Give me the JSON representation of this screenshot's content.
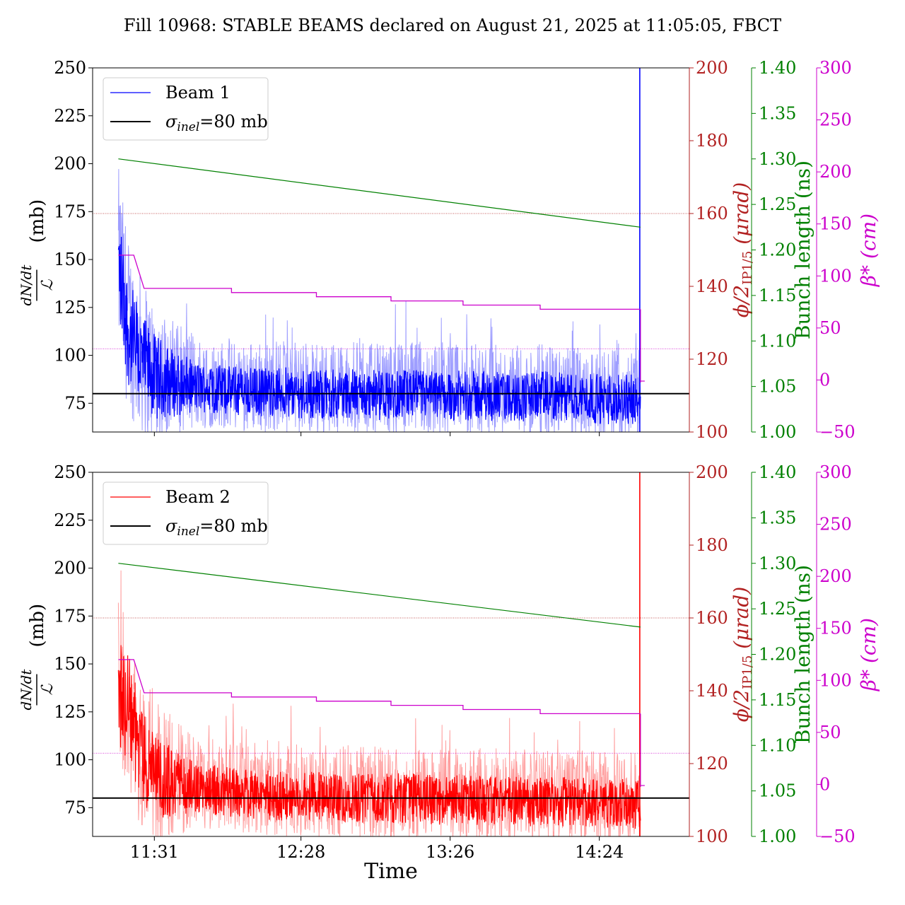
{
  "title": "Fill 10968: STABLE BEAMS declared on August 21, 2025 at 11:05:05, FBCT",
  "xlabel": "Time",
  "x_ticks": [
    "11:31",
    "12:28",
    "13:26",
    "14:24"
  ],
  "axes": {
    "left": {
      "label_frac_num": "dN/dt",
      "label_frac_den": "ℒ",
      "label_unit": "(mb)",
      "ticks": [
        "75",
        "100",
        "125",
        "150",
        "175",
        "200",
        "225",
        "250"
      ]
    },
    "phi": {
      "label": "ϕ/2",
      "label_sub": "IP1/5",
      "label_unit": " (μrad)",
      "color": "#b22222",
      "ticks": [
        "100",
        "120",
        "140",
        "160",
        "180",
        "200"
      ]
    },
    "bunch": {
      "label": "Bunch length (ns)",
      "color": "#008000",
      "ticks": [
        "1.00",
        "1.05",
        "1.10",
        "1.15",
        "1.20",
        "1.25",
        "1.30",
        "1.35",
        "1.40"
      ]
    },
    "beta": {
      "label": "β* (cm)",
      "color": "#cc00cc",
      "ticks": [
        "−50",
        "0",
        "50",
        "100",
        "150",
        "200",
        "250",
        "300"
      ]
    }
  },
  "legends": [
    {
      "series": "Beam 1",
      "ref": "σ",
      "ref_sub": "inel",
      "ref_text": "=80 mb"
    },
    {
      "series": "Beam 2",
      "ref": "σ",
      "ref_sub": "inel",
      "ref_text": "=80 mb"
    }
  ],
  "colors": {
    "beam1": "#0000ff",
    "beam2": "#ff0000",
    "ref": "#000000",
    "phi": "#b22222",
    "bunch": "#008000",
    "beta": "#cc00cc"
  },
  "chart_data": [
    {
      "type": "line",
      "title": "Fill 10968: STABLE BEAMS declared on August 21, 2025 at 11:05:05, FBCT",
      "xlabel": "Time",
      "ylabel": "dN/dt / ℒ (mb)",
      "xlim": [
        "11:07",
        "14:59"
      ],
      "ylim": [
        60,
        250
      ],
      "x_ticks": [
        "11:31",
        "12:28",
        "13:26",
        "14:24"
      ],
      "reference_line": {
        "name": "σinel=80 mb",
        "y": 80
      },
      "series": [
        {
          "name": "Beam 1",
          "color": "#0000ff",
          "x": [
            "11:17",
            "11:21",
            "11:26",
            "11:31",
            "11:40",
            "11:50",
            "12:00",
            "12:10",
            "12:20",
            "12:28",
            "12:40",
            "12:50",
            "13:00",
            "13:10",
            "13:20",
            "13:26",
            "13:40",
            "13:50",
            "14:00",
            "14:10",
            "14:20",
            "14:24",
            "14:35",
            "14:40"
          ],
          "values": [
            150,
            115,
            100,
            92,
            88,
            86,
            85,
            84,
            84,
            83,
            83,
            83,
            82,
            83,
            82,
            82,
            82,
            81,
            82,
            81,
            81,
            80,
            80,
            80
          ]
        }
      ],
      "secondary_series": [
        {
          "name": "ϕ/2 IP1/5",
          "axis": "ϕ/2IP1/5 (μrad)",
          "ylim": [
            100,
            200
          ],
          "x": [
            "11:17",
            "14:40"
          ],
          "values": [
            160,
            160
          ]
        },
        {
          "name": "Bunch length",
          "axis": "Bunch length (ns)",
          "ylim": [
            1.0,
            1.4
          ],
          "x": [
            "11:17",
            "14:40"
          ],
          "values": [
            1.3,
            1.225
          ]
        },
        {
          "name": "β*",
          "axis": "β* (cm)",
          "ylim": [
            -50,
            300
          ],
          "x": [
            "11:17",
            "11:23",
            "11:27",
            "12:01",
            "12:34",
            "13:03",
            "13:31",
            "14:01",
            "14:40"
          ],
          "values": [
            120,
            120,
            88,
            84,
            80,
            76,
            72,
            68,
            68
          ]
        },
        {
          "name": "β* reference",
          "axis": "β* (cm)",
          "x": [
            "11:07",
            "14:59"
          ],
          "values": [
            30,
            30
          ]
        }
      ]
    },
    {
      "type": "line",
      "xlabel": "Time",
      "ylabel": "dN/dt / ℒ (mb)",
      "xlim": [
        "11:07",
        "14:59"
      ],
      "ylim": [
        60,
        250
      ],
      "x_ticks": [
        "11:31",
        "12:28",
        "13:26",
        "14:24"
      ],
      "reference_line": {
        "name": "σinel=80 mb",
        "y": 80
      },
      "series": [
        {
          "name": "Beam 2",
          "color": "#ff0000",
          "x": [
            "11:17",
            "11:21",
            "11:26",
            "11:31",
            "11:40",
            "11:50",
            "12:00",
            "12:10",
            "12:20",
            "12:28",
            "12:40",
            "12:50",
            "13:00",
            "13:10",
            "13:20",
            "13:26",
            "13:40",
            "13:50",
            "14:00",
            "14:10",
            "14:20",
            "14:24",
            "14:35",
            "14:40"
          ],
          "values": [
            140,
            130,
            105,
            95,
            90,
            88,
            86,
            85,
            84,
            84,
            84,
            83,
            83,
            83,
            82,
            82,
            82,
            82,
            81,
            81,
            81,
            80,
            80,
            80
          ]
        }
      ],
      "secondary_series": [
        {
          "name": "ϕ/2 IP1/5",
          "axis": "ϕ/2IP1/5 (μrad)",
          "ylim": [
            100,
            200
          ],
          "x": [
            "11:17",
            "14:40"
          ],
          "values": [
            160,
            160
          ]
        },
        {
          "name": "Bunch length",
          "axis": "Bunch length (ns)",
          "ylim": [
            1.0,
            1.4
          ],
          "x": [
            "11:17",
            "14:40"
          ],
          "values": [
            1.3,
            1.23
          ]
        },
        {
          "name": "β*",
          "axis": "β* (cm)",
          "ylim": [
            -50,
            300
          ],
          "x": [
            "11:17",
            "11:23",
            "11:27",
            "12:01",
            "12:34",
            "13:03",
            "13:31",
            "14:01",
            "14:40"
          ],
          "values": [
            120,
            120,
            88,
            84,
            80,
            76,
            72,
            68,
            68
          ]
        },
        {
          "name": "β* reference",
          "axis": "β* (cm)",
          "x": [
            "11:07",
            "14:59"
          ],
          "values": [
            30,
            30
          ]
        }
      ]
    }
  ]
}
